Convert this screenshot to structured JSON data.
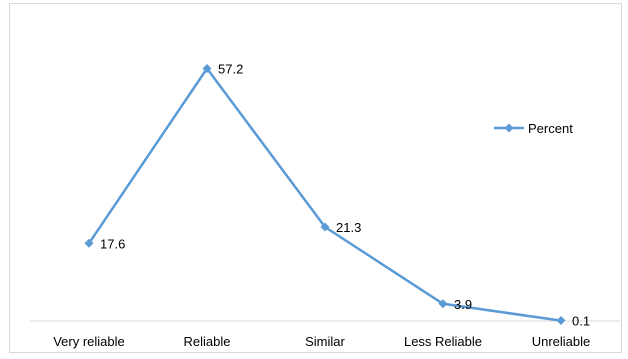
{
  "chart_data": {
    "type": "line",
    "categories": [
      "Very reliable",
      "Reliable",
      "Similar",
      "Less Reliable",
      "Unreliable"
    ],
    "series": [
      {
        "name": "Percent",
        "values": [
          17.6,
          57.2,
          21.3,
          3.9,
          0.1
        ],
        "color": "#5b9bd5"
      }
    ],
    "data_labels": [
      "17.6",
      "57.2",
      "21.3",
      "3.9",
      "0.1"
    ],
    "ylim": [
      0,
      70
    ],
    "grid": false,
    "legend_position": "right",
    "marker": "diamond"
  }
}
